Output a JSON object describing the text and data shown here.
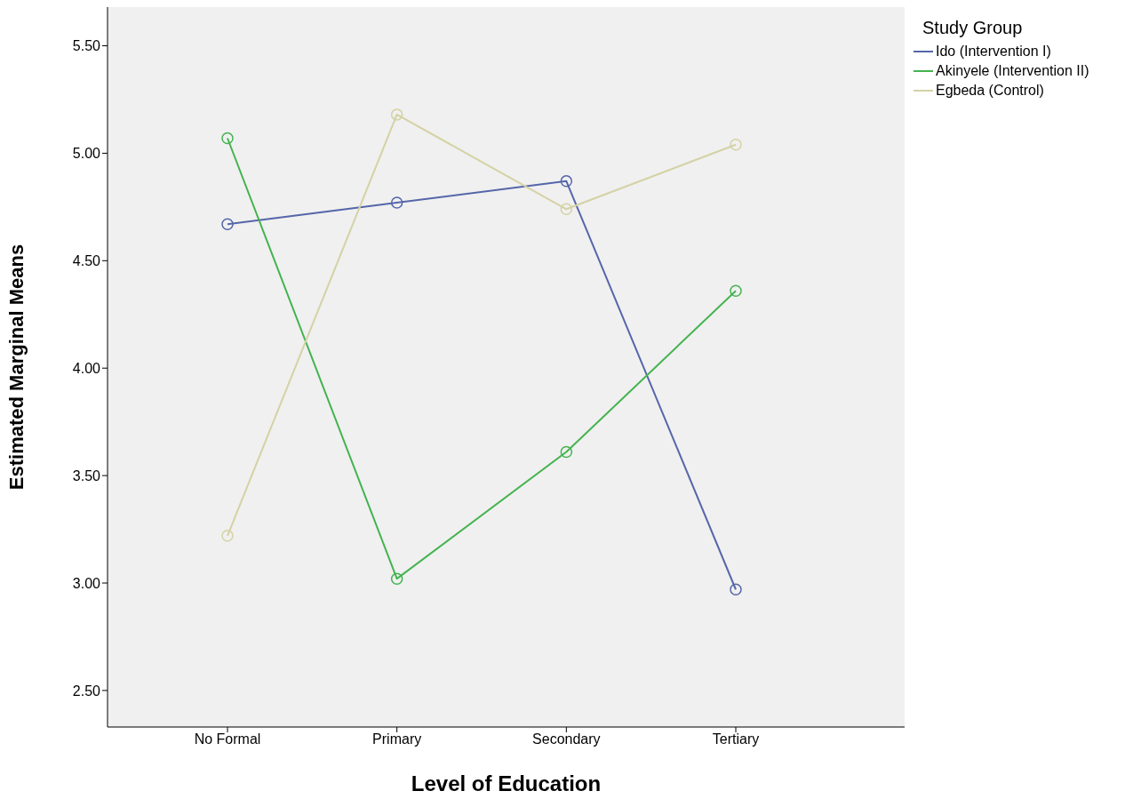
{
  "chart_data": {
    "type": "line",
    "xlabel": "Level of Education",
    "ylabel": "Estimated Marginal Means",
    "legend_title": "Study Group",
    "categories": [
      "No Formal",
      "Primary",
      "Secondary",
      "Tertiary"
    ],
    "series": [
      {
        "name": "Ido (Intervention I)",
        "color": "#5566aa",
        "values": [
          4.67,
          4.77,
          4.87,
          2.97
        ]
      },
      {
        "name": "Akinyele (Intervention II)",
        "color": "#44b350",
        "values": [
          5.07,
          3.02,
          3.61,
          4.36
        ]
      },
      {
        "name": "Egbeda (Control)",
        "color": "#d4d2a4",
        "values": [
          3.22,
          5.18,
          4.74,
          5.04
        ]
      }
    ],
    "ylim": [
      2.33,
      5.68
    ],
    "yticks": [
      {
        "value": 2.5,
        "label": "2.50"
      },
      {
        "value": 3,
        "label": "3.00"
      },
      {
        "value": 3.5,
        "label": "3.50"
      },
      {
        "value": 4,
        "label": "4.00"
      },
      {
        "value": 4.5,
        "label": "4.50"
      },
      {
        "value": 5,
        "label": "5.00"
      },
      {
        "value": 5.5,
        "label": "5.50"
      }
    ],
    "grid": false,
    "legend": "top right",
    "marker": "circle",
    "line_style": "solid"
  }
}
